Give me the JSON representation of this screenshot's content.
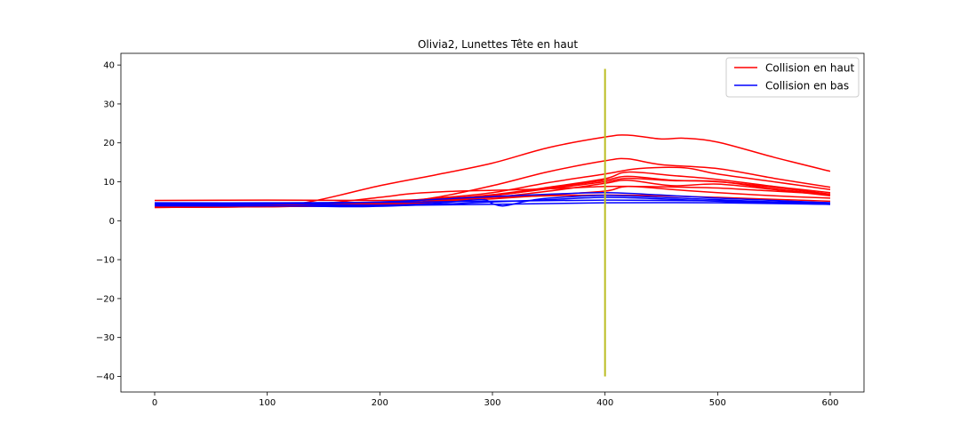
{
  "chart_data": {
    "type": "line",
    "title": "Olivia2, Lunettes Tête en haut",
    "xlabel": "",
    "ylabel": "",
    "xlim": [
      -30,
      630
    ],
    "ylim": [
      -44,
      43
    ],
    "xticks": [
      0,
      100,
      200,
      300,
      400,
      500,
      600
    ],
    "yticks": [
      -40,
      -30,
      -20,
      -10,
      0,
      10,
      20,
      30,
      40
    ],
    "xtick_labels": [
      "0",
      "100",
      "200",
      "300",
      "400",
      "500",
      "600"
    ],
    "ytick_labels": [
      "−40",
      "−30",
      "−20",
      "−10",
      "0",
      "10",
      "20",
      "30",
      "40"
    ],
    "grid": false,
    "legend_position": "top-right",
    "legend": [
      {
        "label": "Collision en haut",
        "color": "#ff0000"
      },
      {
        "label": "Collision en bas",
        "color": "#0000ff"
      }
    ],
    "vertical_marker": {
      "x": 400,
      "y_range": [
        -40,
        39
      ],
      "color": "#bcbd22"
    },
    "series": [
      {
        "group": "haut",
        "color": "#ff0000",
        "x": [
          0,
          100,
          140,
          200,
          250,
          300,
          350,
          400,
          420,
          450,
          470,
          500,
          550,
          600
        ],
        "y": [
          3.5,
          3.8,
          5.0,
          9.0,
          11.8,
          14.8,
          18.8,
          21.5,
          22.0,
          21.0,
          21.2,
          20.2,
          16.3,
          12.7
        ]
      },
      {
        "group": "haut",
        "color": "#ff0000",
        "x": [
          0,
          100,
          200,
          250,
          300,
          350,
          400,
          420,
          450,
          500,
          550,
          600
        ],
        "y": [
          3.4,
          3.6,
          4.3,
          6.0,
          9.0,
          12.6,
          15.4,
          15.9,
          14.4,
          13.4,
          10.9,
          8.6
        ]
      },
      {
        "group": "haut",
        "color": "#ff0000",
        "x": [
          0,
          100,
          200,
          250,
          300,
          350,
          400,
          430,
          470,
          500,
          550,
          600
        ],
        "y": [
          4.0,
          4.1,
          4.8,
          5.8,
          7.2,
          9.8,
          12.0,
          13.4,
          13.6,
          12.0,
          10.0,
          8.0
        ]
      },
      {
        "group": "haut",
        "color": "#ff0000",
        "x": [
          0,
          100,
          200,
          250,
          300,
          350,
          400,
          420,
          460,
          500,
          550,
          600
        ],
        "y": [
          3.6,
          3.8,
          4.5,
          5.5,
          6.7,
          8.6,
          10.8,
          12.5,
          11.6,
          10.6,
          8.8,
          7.2
        ]
      },
      {
        "group": "haut",
        "color": "#ff0000",
        "x": [
          0,
          100,
          200,
          250,
          300,
          350,
          400,
          420,
          460,
          500,
          550,
          600
        ],
        "y": [
          3.5,
          3.7,
          4.2,
          5.2,
          6.4,
          8.4,
          10.4,
          11.4,
          10.4,
          10.0,
          8.6,
          6.8
        ]
      },
      {
        "group": "haut",
        "color": "#ff0000",
        "x": [
          0,
          100,
          200,
          250,
          300,
          350,
          400,
          420,
          460,
          500,
          550,
          600
        ],
        "y": [
          3.7,
          3.9,
          4.5,
          5.6,
          6.5,
          8.2,
          10.0,
          10.9,
          10.3,
          10.1,
          8.2,
          6.6
        ]
      },
      {
        "group": "haut",
        "color": "#ff0000",
        "x": [
          0,
          100,
          200,
          250,
          300,
          350,
          400,
          420,
          460,
          500,
          550,
          600
        ],
        "y": [
          3.4,
          3.6,
          4.0,
          5.0,
          6.0,
          7.6,
          9.6,
          10.4,
          9.0,
          9.4,
          8.0,
          6.4
        ]
      },
      {
        "group": "haut",
        "color": "#ff0000",
        "x": [
          0,
          100,
          150,
          200,
          230,
          270,
          300,
          350,
          400,
          430,
          470,
          500,
          550,
          600
        ],
        "y": [
          4.2,
          4.2,
          4.5,
          6.0,
          7.0,
          7.6,
          7.8,
          8.2,
          8.8,
          8.8,
          8.6,
          8.4,
          7.6,
          6.8
        ]
      },
      {
        "group": "haut",
        "color": "#ff0000",
        "x": [
          0,
          100,
          200,
          250,
          300,
          350,
          400,
          420,
          460,
          500,
          550,
          600
        ],
        "y": [
          3.4,
          3.6,
          4.0,
          4.8,
          5.6,
          6.6,
          7.6,
          8.8,
          8.0,
          7.2,
          6.4,
          5.8
        ]
      },
      {
        "group": "haut",
        "color": "#ff0000",
        "x": [
          0,
          100,
          200,
          250,
          300,
          350,
          400,
          450,
          500,
          550,
          600
        ],
        "y": [
          5.2,
          5.3,
          5.2,
          5.5,
          6.0,
          6.4,
          6.6,
          6.4,
          6.0,
          5.5,
          5.0
        ]
      },
      {
        "group": "bas",
        "color": "#0000ff",
        "x": [
          0,
          100,
          200,
          250,
          300,
          350,
          400,
          450,
          500,
          550,
          600
        ],
        "y": [
          4.3,
          4.3,
          4.8,
          5.5,
          6.2,
          6.8,
          7.2,
          6.6,
          5.8,
          5.2,
          4.6
        ]
      },
      {
        "group": "bas",
        "color": "#0000ff",
        "x": [
          0,
          100,
          200,
          250,
          290,
          300,
          310,
          330,
          350,
          400,
          450,
          500,
          550,
          600
        ],
        "y": [
          4.5,
          4.4,
          4.0,
          4.5,
          5.4,
          4.4,
          3.8,
          5.0,
          5.8,
          6.5,
          6.0,
          5.4,
          4.8,
          4.4
        ]
      },
      {
        "group": "bas",
        "color": "#0000ff",
        "x": [
          0,
          100,
          180,
          250,
          300,
          350,
          400,
          450,
          500,
          550,
          600
        ],
        "y": [
          4.0,
          3.9,
          3.6,
          4.2,
          4.8,
          5.4,
          6.0,
          5.6,
          5.0,
          4.6,
          4.2
        ]
      },
      {
        "group": "bas",
        "color": "#0000ff",
        "x": [
          0,
          100,
          200,
          300,
          400,
          500,
          600
        ],
        "y": [
          3.8,
          3.8,
          3.9,
          4.2,
          4.6,
          4.6,
          4.2
        ]
      },
      {
        "group": "bas",
        "color": "#0000ff",
        "x": [
          0,
          100,
          200,
          300,
          400,
          500,
          600
        ],
        "y": [
          4.6,
          4.6,
          4.7,
          5.0,
          5.3,
          5.1,
          4.6
        ]
      }
    ]
  }
}
